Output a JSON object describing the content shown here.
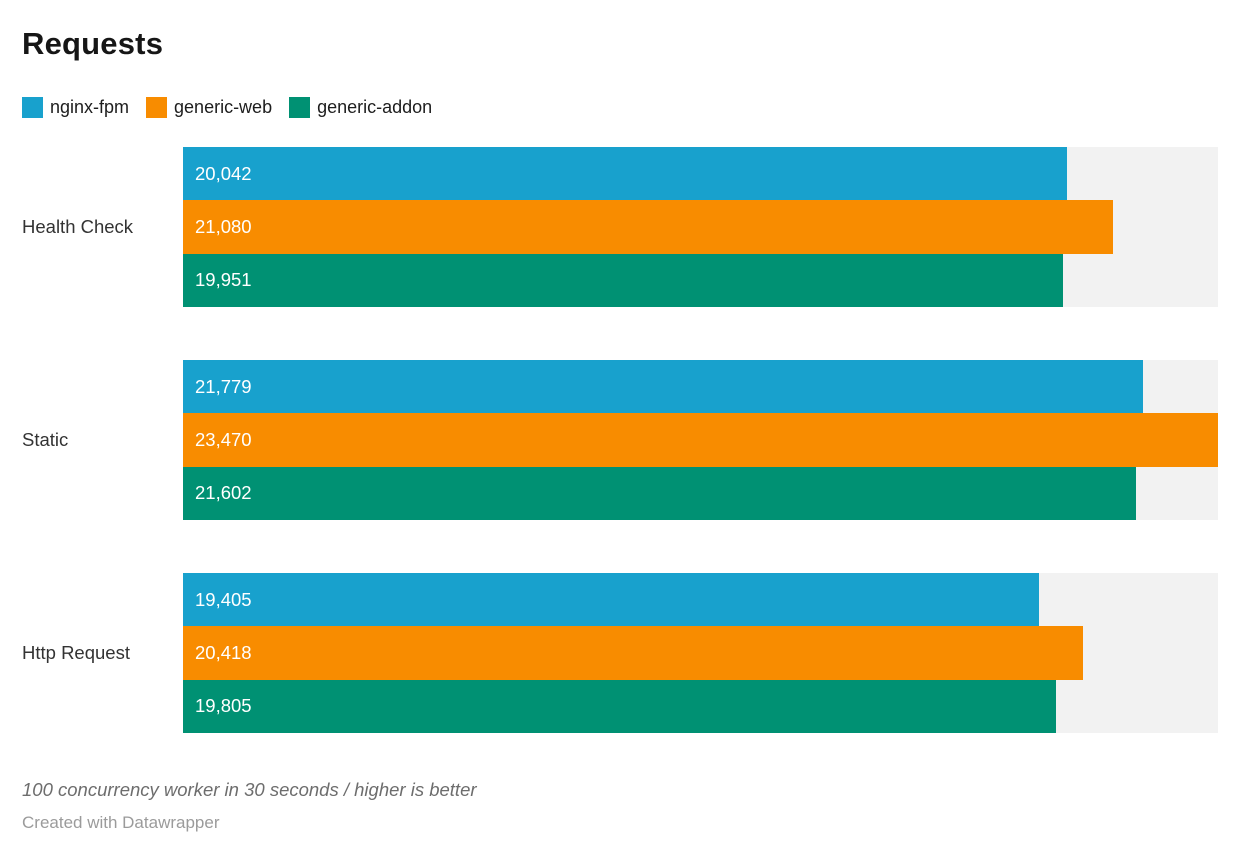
{
  "chart_data": {
    "type": "bar",
    "orientation": "horizontal",
    "title": "Requests",
    "categories": [
      "Health Check",
      "Static",
      "Http Request"
    ],
    "series": [
      {
        "name": "nginx-fpm",
        "color": "#18a1cd",
        "values": [
          20042,
          21779,
          19405
        ],
        "labels": [
          "20,042",
          "21,779",
          "19,405"
        ]
      },
      {
        "name": "generic-web",
        "color": "#f88c00",
        "values": [
          21080,
          23470,
          20418
        ],
        "labels": [
          "21,080",
          "23,470",
          "20,418"
        ]
      },
      {
        "name": "generic-addon",
        "color": "#009173",
        "values": [
          19951,
          21602,
          19805
        ],
        "labels": [
          "19,951",
          "21,602",
          "19,805"
        ]
      }
    ],
    "axis_max": 23470,
    "track_color": "#f2f2f2",
    "grid": false,
    "legend_position": "top",
    "value_labels_inside": true
  },
  "footer": {
    "note": "100 concurrency worker in 30 seconds / higher is better",
    "attribution": "Created with Datawrapper"
  }
}
